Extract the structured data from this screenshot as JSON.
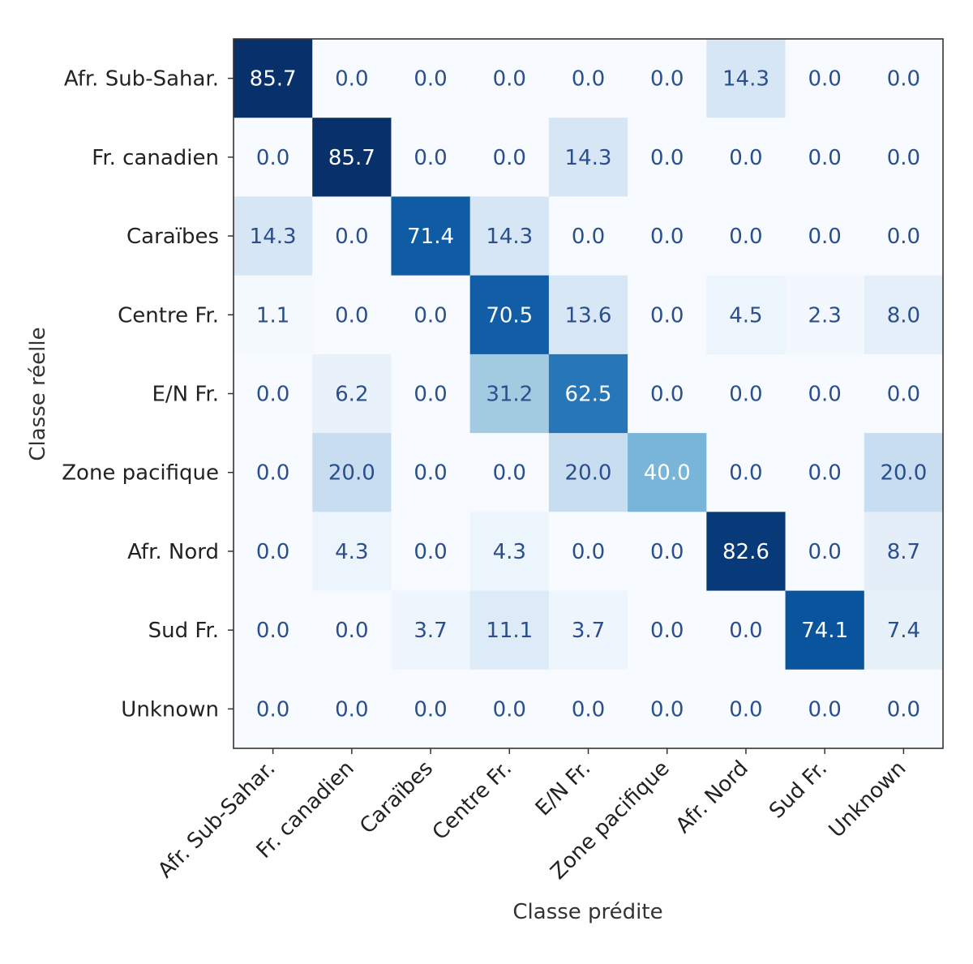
{
  "chart_data": {
    "type": "heatmap",
    "title": "",
    "xlabel": "Classe prédite",
    "ylabel": "Classe réelle",
    "x_categories": [
      "Afr. Sub-Sahar.",
      "Fr. canadien",
      "Caraïbes",
      "Centre Fr.",
      "E/N Fr.",
      "Zone pacifique",
      "Afr. Nord",
      "Sud Fr.",
      "Unknown"
    ],
    "y_categories": [
      "Afr. Sub-Sahar.",
      "Fr. canadien",
      "Caraïbes",
      "Centre Fr.",
      "E/N Fr.",
      "Zone pacifique",
      "Afr. Nord",
      "Sud Fr.",
      "Unknown"
    ],
    "values": [
      [
        85.7,
        0.0,
        0.0,
        0.0,
        0.0,
        0.0,
        14.3,
        0.0,
        0.0
      ],
      [
        0.0,
        85.7,
        0.0,
        0.0,
        14.3,
        0.0,
        0.0,
        0.0,
        0.0
      ],
      [
        14.3,
        0.0,
        71.4,
        14.3,
        0.0,
        0.0,
        0.0,
        0.0,
        0.0
      ],
      [
        1.1,
        0.0,
        0.0,
        70.5,
        13.6,
        0.0,
        4.5,
        2.3,
        8.0
      ],
      [
        0.0,
        6.2,
        0.0,
        31.2,
        62.5,
        0.0,
        0.0,
        0.0,
        0.0
      ],
      [
        0.0,
        20.0,
        0.0,
        0.0,
        20.0,
        40.0,
        0.0,
        0.0,
        20.0
      ],
      [
        0.0,
        4.3,
        0.0,
        4.3,
        0.0,
        0.0,
        82.6,
        0.0,
        8.7
      ],
      [
        0.0,
        0.0,
        3.7,
        11.1,
        3.7,
        0.0,
        0.0,
        74.1,
        7.4
      ],
      [
        0.0,
        0.0,
        0.0,
        0.0,
        0.0,
        0.0,
        0.0,
        0.0,
        0.0
      ]
    ],
    "value_range": [
      0,
      85.7
    ],
    "colormap": "Blues",
    "colors": {
      "low": "#f7fbff",
      "high": "#08306b",
      "light_text": "#ffffff",
      "dark_text": "#2b4f8c"
    },
    "grid": false,
    "legend": "none"
  }
}
